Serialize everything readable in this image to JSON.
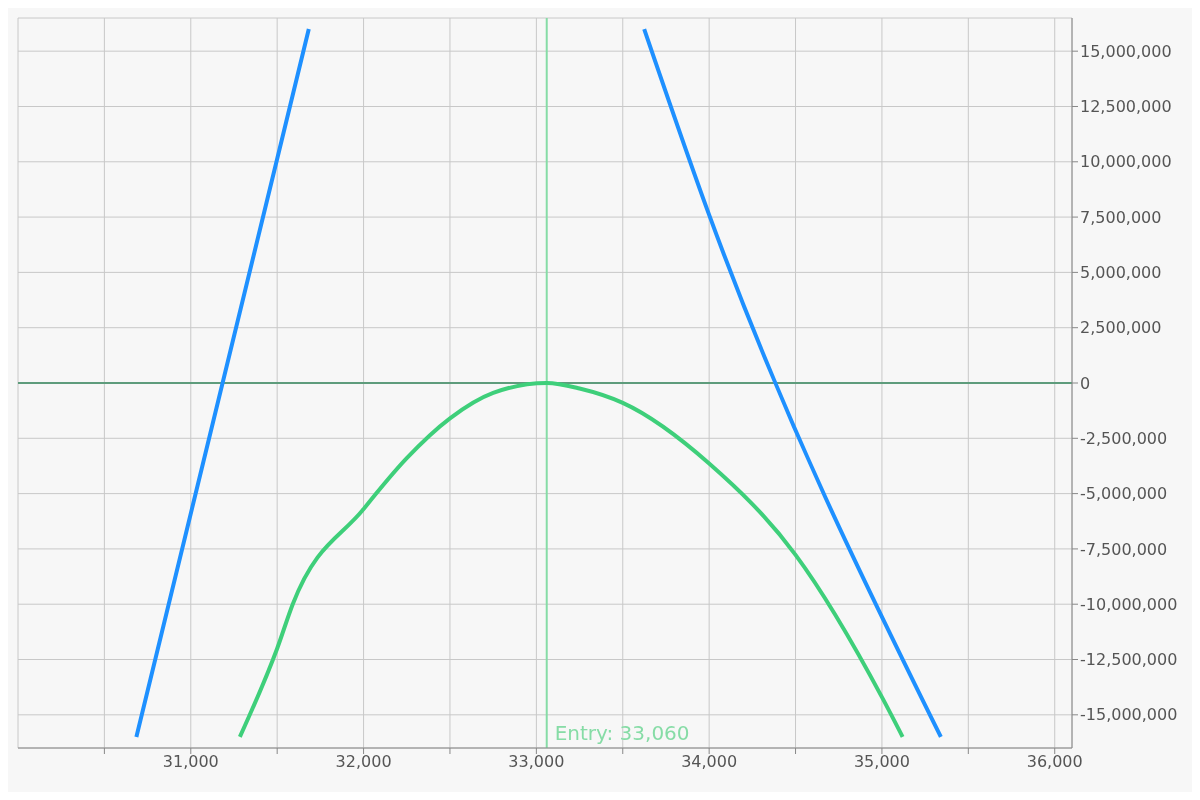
{
  "chart_data": {
    "type": "line",
    "series": [
      {
        "color": "#1e90ff",
        "x": [
          30685,
          31683,
          32700,
          33624,
          34000,
          35341
        ],
        "values": [
          -16000000,
          16000000,
          null,
          16000000,
          7600000,
          -16000000
        ]
      },
      {
        "color": "#3ecf7a",
        "x": [
          31284,
          31500,
          31590,
          32000,
          32250,
          32500,
          32750,
          33060,
          33250,
          33500,
          34000,
          34500,
          35000,
          35120
        ],
        "values": [
          -16000000,
          -12000000,
          -10000000,
          -5700000,
          -3400000,
          -1600000,
          -450000,
          0,
          -250000,
          -900000,
          -3640000,
          -7770000,
          -14200000,
          -16000000
        ]
      }
    ],
    "xlim": [
      30000,
      36100
    ],
    "xticks": [
      {
        "value": 30500,
        "label": null
      },
      {
        "value": 31000,
        "label": "31,000"
      },
      {
        "value": 31500,
        "label": null
      },
      {
        "value": 32000,
        "label": "32,000"
      },
      {
        "value": 32500,
        "label": null
      },
      {
        "value": 33000,
        "label": "33,000"
      },
      {
        "value": 33500,
        "label": null
      },
      {
        "value": 34000,
        "label": "34,000"
      },
      {
        "value": 34500,
        "label": null
      },
      {
        "value": 35000,
        "label": "35,000"
      },
      {
        "value": 35500,
        "label": null
      },
      {
        "value": 36000,
        "label": "36,000"
      }
    ],
    "ylim": [
      -16500000,
      16500000
    ],
    "yticks": [
      {
        "value": -15000000,
        "label": "-15,000,000"
      },
      {
        "value": -12500000,
        "label": "-12,500,000"
      },
      {
        "value": -10000000,
        "label": "-10,000,000"
      },
      {
        "value": -7500000,
        "label": "-7,500,000"
      },
      {
        "value": -5000000,
        "label": "-5,000,000"
      },
      {
        "value": -2500000,
        "label": "-2,500,000"
      },
      0,
      {
        "value": 2500000,
        "label": "2,500,000"
      },
      {
        "value": 5000000,
        "label": "5,000,000"
      },
      {
        "value": 7500000,
        "label": "7,500,000"
      },
      {
        "value": 10000000,
        "label": "10,000,000"
      },
      {
        "value": 12500000,
        "label": "12,500,000"
      },
      {
        "value": 15000000,
        "label": "15,000,000"
      }
    ],
    "ref_lines": [
      {
        "axis": "x",
        "value": 33060,
        "label": "Entry: 33,060",
        "color": "#86dca6"
      },
      {
        "axis": "y",
        "value": 0,
        "color": "#5e9c7c"
      }
    ],
    "grid": true,
    "marker": "none",
    "line_style": "solid"
  }
}
